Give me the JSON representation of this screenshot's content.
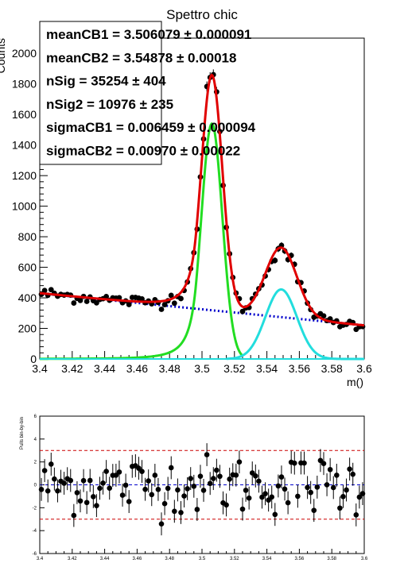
{
  "chart_data": [
    {
      "type": "scatter",
      "title": "Spettro chic",
      "xlabel": "m()",
      "ylabel": "Counts",
      "xlim": [
        3.4,
        3.6
      ],
      "ylim": [
        0,
        2100
      ],
      "xticks": [
        "3.4",
        "3.42",
        "3.44",
        "3.46",
        "3.48",
        "3.5",
        "3.52",
        "3.54",
        "3.56",
        "3.58",
        "3.6"
      ],
      "yticks": [
        "0",
        "200",
        "400",
        "600",
        "800",
        "1000",
        "1200",
        "1400",
        "1600",
        "1800",
        "2000"
      ],
      "fit_params": [
        {
          "name": "meanCB1",
          "value": "3.506079",
          "error": "0.000091"
        },
        {
          "name": "meanCB2",
          "value": "3.54878",
          "error": "0.00018"
        },
        {
          "name": "nSig",
          "value": "35254",
          "error": "404"
        },
        {
          "name": "nSig2",
          "value": "10976",
          "error": "235"
        },
        {
          "name": "sigmaCB1",
          "value": "0.006459",
          "error": "0.000094"
        },
        {
          "name": "sigmaCB2",
          "value": "0.00970",
          "error": "0.00022"
        }
      ],
      "model": {
        "background": {
          "y_at_3_4": 430,
          "y_at_3_6": 220
        },
        "peak1": {
          "mean": 3.506079,
          "sigma": 0.006459,
          "height": 1540
        },
        "peak2": {
          "mean": 3.54878,
          "sigma": 0.0097,
          "height": 455
        }
      },
      "series": [
        {
          "role": "data points",
          "color": "#000000",
          "marker": "filled-circle"
        },
        {
          "role": "total fit",
          "color": "#e00000",
          "style": "solid"
        },
        {
          "role": "signal 1",
          "color": "#22dd22",
          "style": "solid"
        },
        {
          "role": "signal 2",
          "color": "#22dddd",
          "style": "solid"
        },
        {
          "role": "background",
          "color": "#0000cc",
          "style": "dotted"
        }
      ]
    },
    {
      "type": "scatter",
      "ylabel": "Pulls bin-by-bin",
      "xlim": [
        3.4,
        3.6
      ],
      "ylim": [
        -6,
        6
      ],
      "xticks": [
        "3.4",
        "3.42",
        "3.44",
        "3.46",
        "3.48",
        "3.5",
        "3.52",
        "3.54",
        "3.56",
        "3.58",
        "3.6"
      ],
      "yticks": [
        "-6",
        "-4",
        "-2",
        "0",
        "2",
        "4",
        "6"
      ],
      "reference_lines": [
        {
          "y": 3,
          "color": "#cc0000",
          "style": "dashed"
        },
        {
          "y": -3,
          "color": "#cc0000",
          "style": "dashed"
        },
        {
          "y": 0,
          "color": "#0000cc",
          "style": "dashed"
        }
      ]
    }
  ]
}
